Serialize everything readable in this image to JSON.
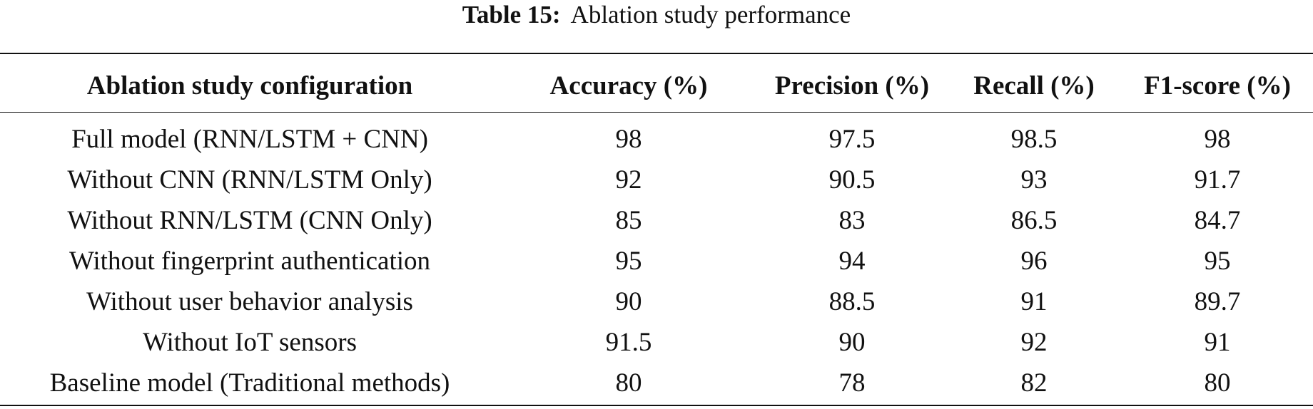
{
  "caption": {
    "label": "Table 15:",
    "title": "Ablation study performance"
  },
  "table": {
    "headers": [
      "Ablation study configuration",
      "Accuracy (%)",
      "Precision (%)",
      "Recall (%)",
      "F1-score (%)"
    ],
    "rows": [
      [
        "Full model (RNN/LSTM + CNN)",
        "98",
        "97.5",
        "98.5",
        "98"
      ],
      [
        "Without CNN (RNN/LSTM Only)",
        "92",
        "90.5",
        "93",
        "91.7"
      ],
      [
        "Without RNN/LSTM (CNN Only)",
        "85",
        "83",
        "86.5",
        "84.7"
      ],
      [
        "Without fingerprint authentication",
        "95",
        "94",
        "96",
        "95"
      ],
      [
        "Without user behavior analysis",
        "90",
        "88.5",
        "91",
        "89.7"
      ],
      [
        "Without IoT sensors",
        "91.5",
        "90",
        "92",
        "91"
      ],
      [
        "Baseline model (Traditional methods)",
        "80",
        "78",
        "82",
        "80"
      ]
    ]
  }
}
